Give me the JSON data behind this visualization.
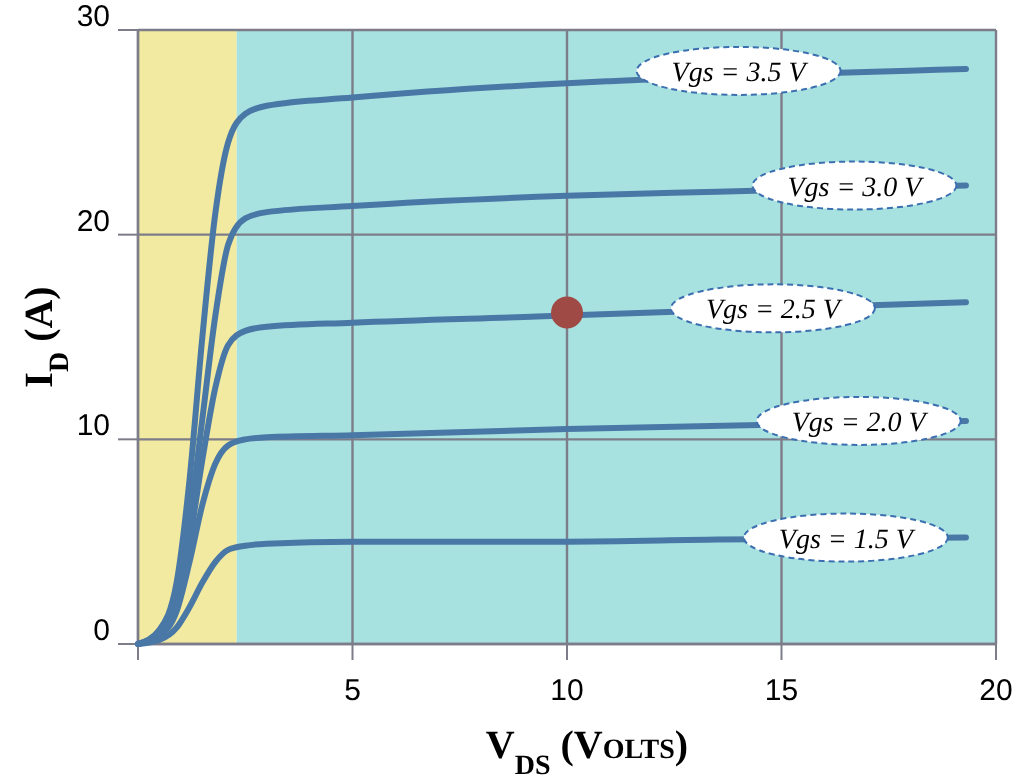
{
  "chart_data": {
    "type": "line",
    "xlabel": "V$_{DS}$ (Volts)",
    "ylabel": "I$_{D}$ (A)",
    "xlim": [
      0,
      20
    ],
    "ylim": [
      0,
      30
    ],
    "xticks": [
      {
        "value": 0,
        "label": null
      },
      5,
      10,
      15,
      20
    ],
    "yticks": [
      0,
      10,
      20,
      30
    ],
    "grid": true,
    "line_style": "solid",
    "bands": [
      {
        "axis": "x",
        "from": 0,
        "to": 2.3,
        "color": "#f2eaa0"
      },
      {
        "axis": "x",
        "from": 2.3,
        "to": 20,
        "color": "#a8e2e0"
      }
    ],
    "series": [
      {
        "color": "#4a78a6",
        "x": [
          0,
          0.5,
          0.9,
          1.2,
          1.5,
          1.8,
          2.1,
          2.5,
          3,
          5,
          10,
          13.5,
          19.3
        ],
        "values": [
          0,
          0.6,
          2.5,
          6,
          11,
          16,
          19.5,
          20.8,
          21.1,
          21.4,
          21.9,
          22.1,
          22.4
        ]
      },
      {
        "color": "#4a78a6",
        "x": [
          0,
          0.5,
          0.9,
          1.2,
          1.5,
          1.8,
          2.1,
          2.5,
          3,
          5,
          10,
          11,
          19.3
        ],
        "values": [
          0,
          0.7,
          3,
          8,
          15,
          21,
          24.5,
          25.9,
          26.3,
          26.7,
          27.4,
          27.5,
          28.1
        ]
      },
      {
        "color": "#4a78a6",
        "x": [
          0,
          0.5,
          0.9,
          1.2,
          1.5,
          1.8,
          2.1,
          2.5,
          3,
          5,
          9.3,
          12,
          19.3
        ],
        "values": [
          0,
          0.5,
          2,
          5,
          9,
          12.5,
          14.6,
          15.3,
          15.5,
          15.7,
          16.0,
          16.2,
          16.7
        ]
      },
      {
        "color": "#4a78a6",
        "x": [
          0,
          0.5,
          0.9,
          1.2,
          1.5,
          1.8,
          2.1,
          2.5,
          3,
          5,
          10,
          14.5,
          19.3
        ],
        "values": [
          0,
          0.4,
          1.6,
          4,
          6.8,
          8.8,
          9.7,
          10,
          10.1,
          10.2,
          10.5,
          10.7,
          10.9
        ]
      },
      {
        "color": "#4a78a6",
        "x": [
          0,
          0.5,
          0.9,
          1.2,
          1.5,
          1.8,
          2.1,
          2.5,
          3,
          5,
          10,
          13.5,
          19.3
        ],
        "values": [
          0,
          0.2,
          0.8,
          1.8,
          3,
          4,
          4.6,
          4.8,
          4.9,
          5,
          5,
          5.1,
          5.2
        ]
      },
      {
        "type": "scatter",
        "marker": "circle",
        "color": "#a04a45",
        "x": [
          10
        ],
        "values": [
          16.2
        ]
      }
    ],
    "annotations": [
      {
        "text": "Vgs = 3.5 V",
        "x": 14,
        "y": 28
      },
      {
        "text": "Vgs = 3.0 V",
        "x": 16.7,
        "y": 22.4
      },
      {
        "text": "Vgs = 2.5 V",
        "x": 14.8,
        "y": 16.4
      },
      {
        "text": "Vgs = 2.0 V",
        "x": 16.8,
        "y": 10.9
      },
      {
        "text": "Vgs = 1.5 V",
        "x": 16.5,
        "y": 5.2
      }
    ]
  }
}
